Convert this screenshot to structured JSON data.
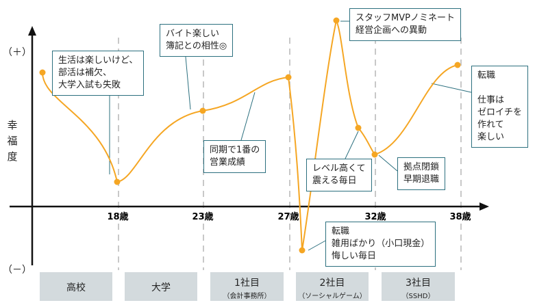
{
  "y_axis": {
    "label": "幸福度",
    "plus": "（＋）",
    "minus": "（－）"
  },
  "x_ticks": [
    "18歳",
    "23歳",
    "27歳",
    "32歳",
    "38歳"
  ],
  "eras": [
    {
      "name": "高校",
      "sub": ""
    },
    {
      "name": "大学",
      "sub": ""
    },
    {
      "name": "1社目",
      "sub": "（会計事務所）"
    },
    {
      "name": "2社目",
      "sub": "（ソーシャルゲーム）"
    },
    {
      "name": "3社目",
      "sub": "（SSHD）"
    }
  ],
  "annotations": [
    {
      "text": "生活は楽しいけど、\n部活は補欠、\n大学入試も失敗"
    },
    {
      "text": "バイト楽しい\n簿記との相性◎"
    },
    {
      "text": "同期で1番の\n営業成績"
    },
    {
      "text": "スタッフMVPノミネート\n経営企画への異動"
    },
    {
      "text": "レベル高くて\n震える毎日"
    },
    {
      "text": "拠点閉鎖\n早期退職"
    },
    {
      "text": "転職\n雑用ばかり（小口現金）\n悔しい毎日"
    },
    {
      "text": "転職\n\n仕事は\nゼロイチを\n作れて\n楽しい"
    }
  ],
  "colors": {
    "curve": "#f5a623",
    "point": "#f5a623",
    "axis": "#111111",
    "divider": "#c8c8c8",
    "annotation_border": "#2b6f7e",
    "era_bg": "#d3dadd"
  }
}
